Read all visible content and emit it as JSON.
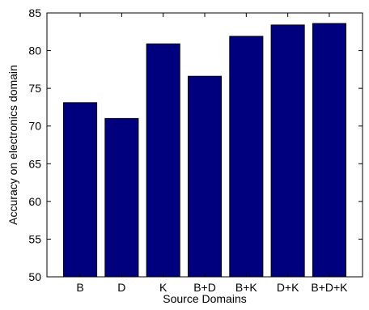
{
  "chart_data": {
    "type": "bar",
    "title": "",
    "xlabel": "Source Domains",
    "ylabel": "Accuracy on electronics domain",
    "categories": [
      "B",
      "D",
      "K",
      "B+D",
      "B+K",
      "D+K",
      "B+D+K"
    ],
    "values": [
      73.1,
      71.0,
      80.9,
      76.6,
      81.9,
      83.4,
      83.6
    ],
    "ylim": [
      50,
      85
    ],
    "yticks": [
      "50",
      "55",
      "60",
      "65",
      "70",
      "75",
      "80",
      "85"
    ],
    "grid": false,
    "legend": "none",
    "bar_color": "#00007f",
    "bar_edge_color": "#000000"
  }
}
